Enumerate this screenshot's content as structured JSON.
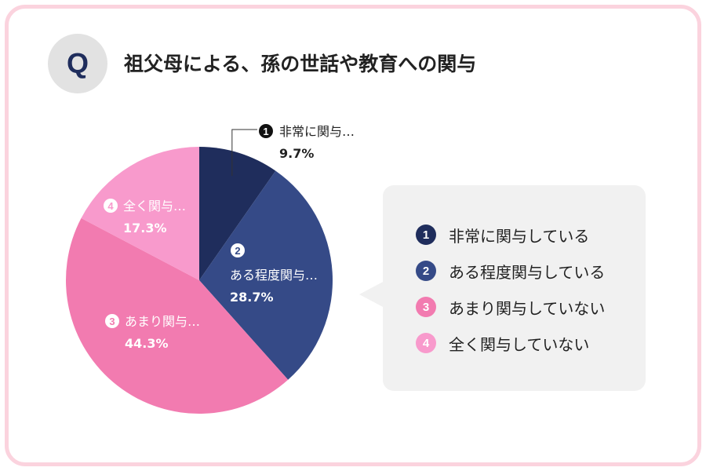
{
  "header": {
    "badge": "Q",
    "title": "祖父母による、孫の世話や教育への関与"
  },
  "chart_data": {
    "type": "pie",
    "title": "祖父母による、孫の世話や教育への関与",
    "start": "12 o'clock, clockwise",
    "slices": [
      {
        "num": "1",
        "short": "非常に関与…",
        "label": "非常に関与している",
        "value": 9.7,
        "display": "9.7%",
        "color": "#1f2d5c"
      },
      {
        "num": "2",
        "short": "ある程度関与…",
        "label": "ある程度関与している",
        "value": 28.7,
        "display": "28.7%",
        "color": "#354a87"
      },
      {
        "num": "3",
        "short": "あまり関与…",
        "label": "あまり関与していない",
        "value": 44.3,
        "display": "44.3%",
        "color": "#f27bb0"
      },
      {
        "num": "4",
        "short": "全く関与…",
        "label": "全く関与していない",
        "value": 17.3,
        "display": "17.3%",
        "color": "#f89acc"
      }
    ]
  }
}
